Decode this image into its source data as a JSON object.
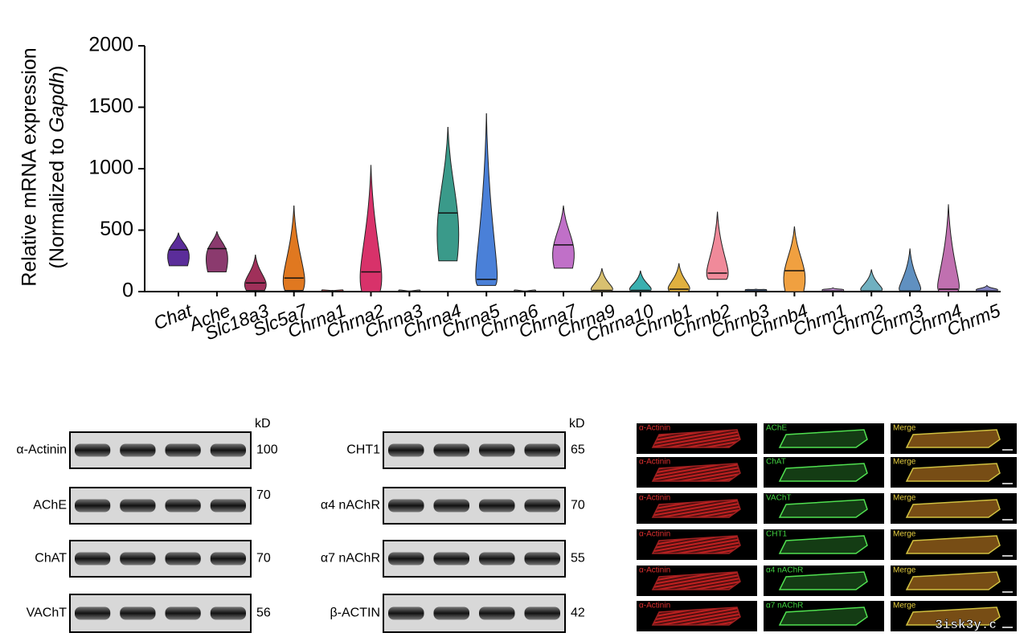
{
  "chart_data": {
    "type": "violin",
    "ylabel_line1": "Relative mRNA expression",
    "ylabel_line2_prefix": "(Normalized to ",
    "ylabel_line2_italic": "Gapdh",
    "ylabel_line2_suffix": ")",
    "categories": [
      "Chat",
      "Ache",
      "Slc18a3",
      "Slc5a7",
      "Chrna1",
      "Chrna2",
      "Chrna3",
      "Chrna4",
      "Chrna5",
      "Chrna6",
      "Chrna7",
      "Chrna9",
      "Chrna10",
      "Chrnb1",
      "Chrnb2",
      "Chrnb3",
      "Chrnb4",
      "Chrm1",
      "Chrm2",
      "Chrm3",
      "Chrm4",
      "Chrm5"
    ],
    "colors": [
      "#5b2d9a",
      "#8b3a6e",
      "#a0305a",
      "#e07820",
      "#c04040",
      "#d8326a",
      "#888888",
      "#3a9a8a",
      "#4a80d8",
      "#888888",
      "#c070c8",
      "#d8c070",
      "#3ab0b0",
      "#e0b040",
      "#f08a9a",
      "#4a6a9a",
      "#f0a040",
      "#c090d0",
      "#70b0c0",
      "#6090c0",
      "#c070b0",
      "#8080c0"
    ],
    "min": [
      210,
      160,
      10,
      10,
      0,
      0,
      0,
      250,
      50,
      0,
      190,
      0,
      0,
      0,
      100,
      0,
      0,
      0,
      0,
      0,
      0,
      0
    ],
    "median": [
      340,
      350,
      70,
      110,
      2,
      160,
      1,
      640,
      100,
      1,
      380,
      10,
      10,
      20,
      150,
      5,
      170,
      5,
      5,
      5,
      20,
      5
    ],
    "max": [
      480,
      490,
      300,
      700,
      10,
      1030,
      5,
      1340,
      1450,
      5,
      700,
      190,
      170,
      230,
      650,
      20,
      530,
      30,
      180,
      350,
      710,
      50
    ],
    "ylim": [
      0,
      2000
    ],
    "yticks": [
      0,
      500,
      1000,
      1500,
      2000
    ]
  },
  "western_blot": {
    "panels": [
      {
        "unit": "kD",
        "rows": [
          {
            "label": "α-Actinin",
            "kd": 100
          },
          {
            "label": "AChE",
            "kd": 70
          },
          {
            "label": "ChAT",
            "kd": 70
          },
          {
            "label": "VAChT",
            "kd": 56
          }
        ]
      },
      {
        "unit": "kD",
        "rows": [
          {
            "label": "CHT1",
            "kd": 65
          },
          {
            "label": "α4 nAChR",
            "kd": 70
          },
          {
            "label": "α7 nAChR",
            "kd": 55
          },
          {
            "label": "β-ACTIN",
            "kd": 42
          }
        ]
      }
    ]
  },
  "immunofluorescence": {
    "rows": [
      [
        "α-Actinin",
        "AChE",
        "Merge"
      ],
      [
        "α-Actinin",
        "ChAT",
        "Merge"
      ],
      [
        "α-Actinin",
        "VAChT",
        "Merge"
      ],
      [
        "α-Actinin",
        "CHT1",
        "Merge"
      ],
      [
        "α-Actinin",
        "α4 nAChR",
        "Merge"
      ],
      [
        "α-Actinin",
        "α7 nAChR",
        "Merge"
      ]
    ]
  },
  "watermark": "3isk3y.c"
}
